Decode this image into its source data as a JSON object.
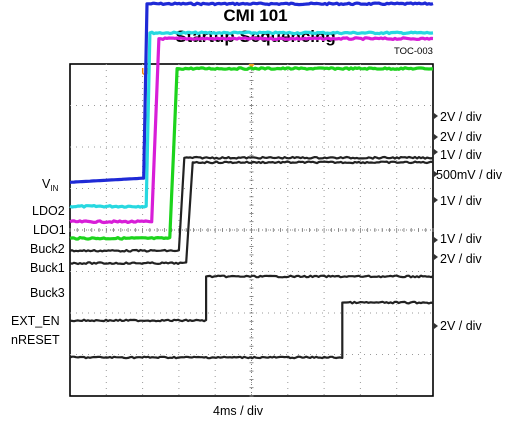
{
  "chart_data": {
    "type": "line",
    "title": "CMI  101",
    "subtitle": "Startup Sequencing",
    "figure_id": "TOC-003",
    "time_scale": "4ms / div",
    "trigger_marker": "U",
    "x_divisions": 10,
    "y_divisions": 8,
    "x_unit": "div",
    "grid": true,
    "series": [
      {
        "name": "VIN",
        "label_main": "V",
        "label_sub": "IN",
        "color": "#1f2ad6",
        "scale": "2V / div",
        "x": [
          0,
          2.03,
          2.12,
          10
        ],
        "y": [
          1.15,
          1.25,
          5.45,
          5.45
        ]
      },
      {
        "name": "LDO2",
        "color": "#27d8e0",
        "scale": "2V / div",
        "x": [
          0,
          2.1,
          2.2,
          10
        ],
        "y": [
          0.57,
          0.57,
          4.75,
          4.75
        ]
      },
      {
        "name": "LDO1",
        "color": "#d81ed8",
        "scale": "1V / div",
        "x": [
          0,
          2.25,
          2.45,
          10
        ],
        "y": [
          0.2,
          0.2,
          4.61,
          4.61
        ]
      },
      {
        "name": "Buck2",
        "color": "#1cd41c",
        "scale": "500mV / div",
        "x": [
          0,
          2.75,
          2.95,
          10
        ],
        "y": [
          -0.2,
          -0.2,
          3.89,
          3.89
        ]
      },
      {
        "name": "Buck1",
        "color": "#222222",
        "scale": "1V / div",
        "x": [
          0,
          3.0,
          3.15,
          10
        ],
        "y": [
          -0.5,
          -0.5,
          1.74,
          1.74
        ]
      },
      {
        "name": "Buck3",
        "color": "#222222",
        "scale": "1V / div",
        "x": [
          0,
          3.2,
          3.38,
          10
        ],
        "y": [
          -0.8,
          -0.8,
          1.63,
          1.63
        ]
      },
      {
        "name": "EXT_EN",
        "color": "#222222",
        "scale": "2V / div",
        "x": [
          0,
          3.75,
          3.75,
          10
        ],
        "y": [
          -2.18,
          -2.18,
          -1.12,
          -1.12
        ]
      },
      {
        "name": "nRESET",
        "color": "#222222",
        "scale": "2V / div",
        "x": [
          0,
          7.5,
          7.5,
          10
        ],
        "y": [
          -3.07,
          -3.07,
          -1.75,
          -1.75
        ]
      }
    ]
  }
}
